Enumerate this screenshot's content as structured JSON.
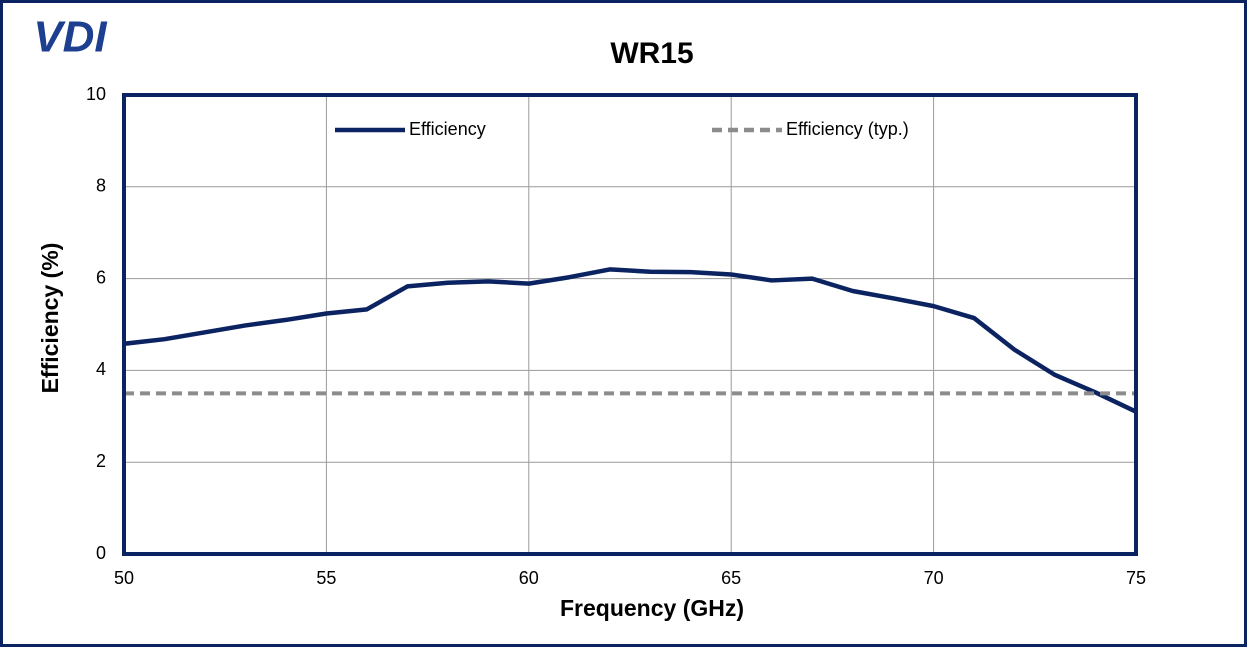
{
  "logo": "VDI",
  "chart_data": {
    "type": "line",
    "title": "WR15",
    "x_label": "Frequency (GHz)",
    "y_label": "Efficiency (%)",
    "x": [
      50,
      51,
      52,
      53,
      54,
      55,
      56,
      57,
      58,
      59,
      60,
      61,
      62,
      63,
      64,
      65,
      66,
      67,
      68,
      69,
      70,
      71,
      72,
      73,
      74,
      75
    ],
    "series": [
      {
        "name": "Efficiency",
        "color": "#0b2461",
        "dash": false,
        "values": [
          4.58,
          4.68,
          4.83,
          4.98,
          5.1,
          5.24,
          5.33,
          5.83,
          5.91,
          5.94,
          5.89,
          6.03,
          6.2,
          6.15,
          6.14,
          6.09,
          5.96,
          6.0,
          5.73,
          5.57,
          5.4,
          5.14,
          4.45,
          3.9,
          3.52,
          3.1
        ]
      },
      {
        "name": "Efficiency (typ.)",
        "color": "#8c8c8c",
        "dash": true,
        "values": [
          3.5,
          3.5,
          3.5,
          3.5,
          3.5,
          3.5,
          3.5,
          3.5,
          3.5,
          3.5,
          3.5,
          3.5,
          3.5,
          3.5,
          3.5,
          3.5,
          3.5,
          3.5,
          3.5,
          3.5,
          3.5,
          3.5,
          3.5,
          3.5,
          3.5,
          3.5
        ]
      }
    ],
    "xlim": [
      50,
      75
    ],
    "xticks": [
      50,
      55,
      60,
      65,
      70,
      75
    ],
    "ylim": [
      0,
      10
    ],
    "yticks": [
      0,
      2,
      4,
      6,
      8,
      10
    ],
    "grid": true,
    "legend": "top"
  }
}
